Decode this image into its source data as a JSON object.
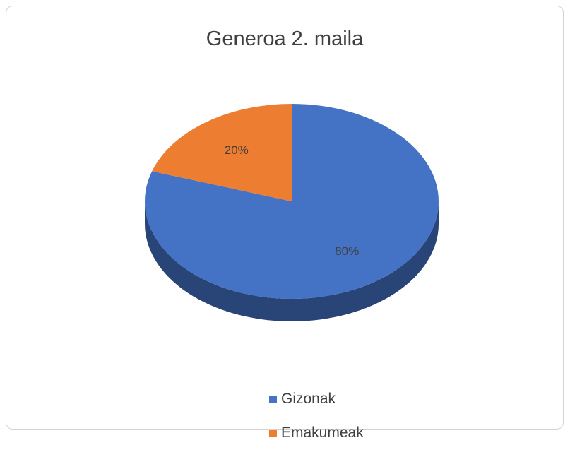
{
  "chart_data": {
    "type": "pie",
    "title": "Generoa 2. maila",
    "categories": [
      "Gizonak",
      "Emakumeak"
    ],
    "values": [
      80,
      20
    ],
    "labels": [
      "80%",
      "20%"
    ],
    "colors": [
      "#4472c4",
      "#ed7d31"
    ],
    "legend_position": "bottom",
    "three_d": true
  }
}
